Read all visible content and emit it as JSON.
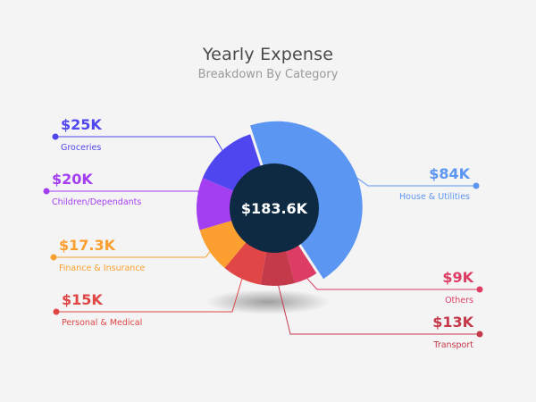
{
  "chart_data": {
    "type": "pie",
    "title": "Yearly Expense",
    "subtitle": "Breakdown By Category",
    "total": "$183.6K",
    "slices": [
      {
        "label": "House & Utilities",
        "value": 84,
        "display": "$84K",
        "color": "#5b96f2"
      },
      {
        "label": "Others",
        "value": 9,
        "display": "$9K",
        "color": "#dd3d65"
      },
      {
        "label": "Transport",
        "value": 13,
        "display": "$13K",
        "color": "#c43a4a"
      },
      {
        "label": "Personal & Medical",
        "value": 15,
        "display": "$15K",
        "color": "#e04646"
      },
      {
        "label": "Finance & Insurance",
        "value": 17.3,
        "display": "$17.3K",
        "color": "#fb9f30"
      },
      {
        "label": "Children/Dependants",
        "value": 20,
        "display": "$20K",
        "color": "#a33ff0"
      },
      {
        "label": "Groceries",
        "value": 25,
        "display": "$25K",
        "color": "#5046ef"
      }
    ],
    "center_color": "#0e2a42"
  }
}
